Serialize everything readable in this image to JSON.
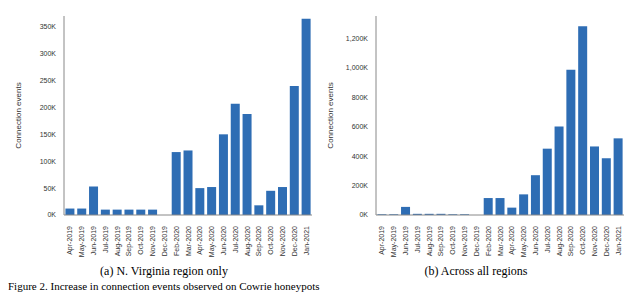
{
  "chart_data": [
    {
      "type": "bar",
      "title": "(a) N. Virginia region only",
      "y_label": "Connection events",
      "color": "#2e6db4",
      "grid": false,
      "categories": [
        "Apr-2019",
        "May-2019",
        "Jun-2019",
        "Jul-2019",
        "Aug-2019",
        "Sep-2019",
        "Oct-2019",
        "Nov-2019",
        "Dec-2019",
        "Feb-2020",
        "Mar-2020",
        "Apr-2020",
        "May-2020",
        "Jun-2020",
        "Jul-2020",
        "Aug-2020",
        "Sep-2020",
        "Oct-2020",
        "Nov-2020",
        "Dec-2020",
        "Jan-2021"
      ],
      "values": [
        12000,
        12000,
        53000,
        10000,
        10000,
        10000,
        10000,
        10000,
        0,
        117000,
        120000,
        50000,
        52000,
        150000,
        207000,
        188000,
        18000,
        45000,
        52000,
        240000,
        365000
      ],
      "ylim": [
        0,
        370000
      ],
      "yticks": [
        {
          "value": 0,
          "label": "0K"
        },
        {
          "value": 50000,
          "label": "50K"
        },
        {
          "value": 100000,
          "label": "100K"
        },
        {
          "value": 150000,
          "label": "150K"
        },
        {
          "value": 200000,
          "label": "200K"
        },
        {
          "value": 250000,
          "label": "250K"
        },
        {
          "value": 300000,
          "label": "300K"
        },
        {
          "value": 350000,
          "label": "350K"
        }
      ]
    },
    {
      "type": "bar",
      "title": "(b) Across all regions",
      "y_label": "Connection events",
      "color": "#2e6db4",
      "grid": false,
      "categories": [
        "Apr-2019",
        "May-2019",
        "Jun-2019",
        "Jul-2019",
        "Aug-2019",
        "Sep-2019",
        "Oct-2019",
        "Nov-2019",
        "Dec-2019",
        "Feb-2020",
        "Mar-2020",
        "Apr-2020",
        "May-2020",
        "Jun-2020",
        "Jul-2020",
        "Aug-2020",
        "Sep-2020",
        "Oct-2020",
        "Nov-2020",
        "Dec-2020",
        "Jan-2021"
      ],
      "values": [
        5000,
        5000,
        55000,
        8000,
        8000,
        8000,
        5000,
        5000,
        0,
        115000,
        115000,
        50000,
        140000,
        270000,
        450000,
        600000,
        985000,
        1280000,
        465000,
        385000,
        520000
      ],
      "ylim": [
        0,
        1350000
      ],
      "yticks": [
        {
          "value": 0,
          "label": "0K"
        },
        {
          "value": 200000,
          "label": "200K"
        },
        {
          "value": 400000,
          "label": "400K"
        },
        {
          "value": 600000,
          "label": "600K"
        },
        {
          "value": 800000,
          "label": "800K"
        },
        {
          "value": 1000000,
          "label": "1,000K"
        },
        {
          "value": 1200000,
          "label": "1,200K"
        }
      ]
    }
  ],
  "caption": "Figure 2. Increase in connection events observed on Cowrie honeypots"
}
